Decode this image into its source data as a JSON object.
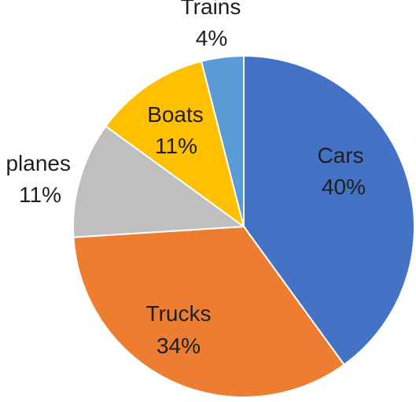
{
  "chart_data": {
    "type": "pie",
    "title": "",
    "start_angle_deg": 0,
    "direction": "clockwise",
    "slices": [
      {
        "category": "Cars",
        "label": "40%",
        "value": 40,
        "color": "#4472C4",
        "label_color": "#1f1f1f"
      },
      {
        "category": "Trucks",
        "label": "34%",
        "value": 34,
        "color": "#ED7D31",
        "label_color": "#1f1f1f"
      },
      {
        "category": "planes",
        "label": "11%",
        "value": 11,
        "color": "#BFBFBF",
        "label_color": "#1f1f1f"
      },
      {
        "category": "Boats",
        "label": "11%",
        "value": 11,
        "color": "#FFC000",
        "label_color": "#1f1f1f"
      },
      {
        "category": "Trains",
        "label": "4%",
        "value": 4,
        "color": "#5B9BD5",
        "label_color": "#1f1f1f"
      }
    ]
  }
}
